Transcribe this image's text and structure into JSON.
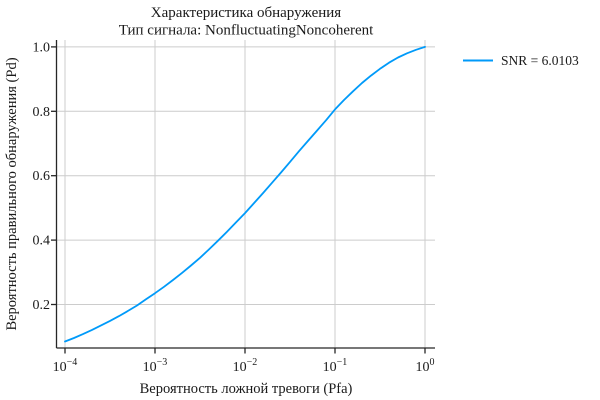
{
  "colors": {
    "series": "#009AF9",
    "grid": "#CCCCCC",
    "spine": "#262626",
    "text": "#1A1A1A",
    "background": "#FFFFFF"
  },
  "chart_data": {
    "type": "line",
    "title": "Характеристика обнаружения",
    "subtitle": "Тип сигнала: NonfluctuatingNoncoherent",
    "xlabel": "Вероятность ложной тревоги (Pfa)",
    "ylabel": "Вероятность правильного обнаружения (Pd)",
    "x_scale": "log10",
    "xlim_log10": [
      -4.094,
      0.111
    ],
    "ylim": [
      0.064,
      1.021
    ],
    "grid": "on",
    "legend_position": "outside-right",
    "x_ticks_log10": [
      -4,
      -3,
      -2,
      -1,
      0
    ],
    "x_tick_labels": [
      {
        "mantissa": "10",
        "exp": "−4"
      },
      {
        "mantissa": "10",
        "exp": "−3"
      },
      {
        "mantissa": "10",
        "exp": "−2"
      },
      {
        "mantissa": "10",
        "exp": "−1"
      },
      {
        "mantissa": "10",
        "exp": "0"
      }
    ],
    "y_ticks": [
      0.2,
      0.4,
      0.6,
      0.8,
      1.0
    ],
    "y_tick_labels": [
      "0.2",
      "0.4",
      "0.6",
      "0.8",
      "1.0"
    ],
    "series": [
      {
        "name": "SNR = 6.0103",
        "snr_db": 6.0103,
        "color": "#009AF9",
        "log10_pfa": [
          -4.0,
          -3.9,
          -3.8,
          -3.7,
          -3.6,
          -3.5,
          -3.4,
          -3.3,
          -3.2,
          -3.1,
          -3.0,
          -2.9,
          -2.8,
          -2.7,
          -2.6,
          -2.5,
          -2.4,
          -2.3,
          -2.2,
          -2.1,
          -2.0,
          -1.9,
          -1.8,
          -1.7,
          -1.6,
          -1.5,
          -1.4,
          -1.3,
          -1.2,
          -1.1,
          -1.0,
          -0.9,
          -0.8,
          -0.7,
          -0.6,
          -0.5,
          -0.4,
          -0.3,
          -0.2,
          -0.1,
          0.0
        ],
        "pd": [
          0.085,
          0.096,
          0.108,
          0.121,
          0.135,
          0.149,
          0.164,
          0.18,
          0.197,
          0.216,
          0.235,
          0.255,
          0.276,
          0.298,
          0.321,
          0.345,
          0.371,
          0.398,
          0.426,
          0.455,
          0.484,
          0.515,
          0.546,
          0.578,
          0.61,
          0.643,
          0.676,
          0.708,
          0.74,
          0.772,
          0.806,
          0.835,
          0.862,
          0.888,
          0.911,
          0.932,
          0.951,
          0.967,
          0.98,
          0.991,
          1.0
        ]
      }
    ]
  }
}
